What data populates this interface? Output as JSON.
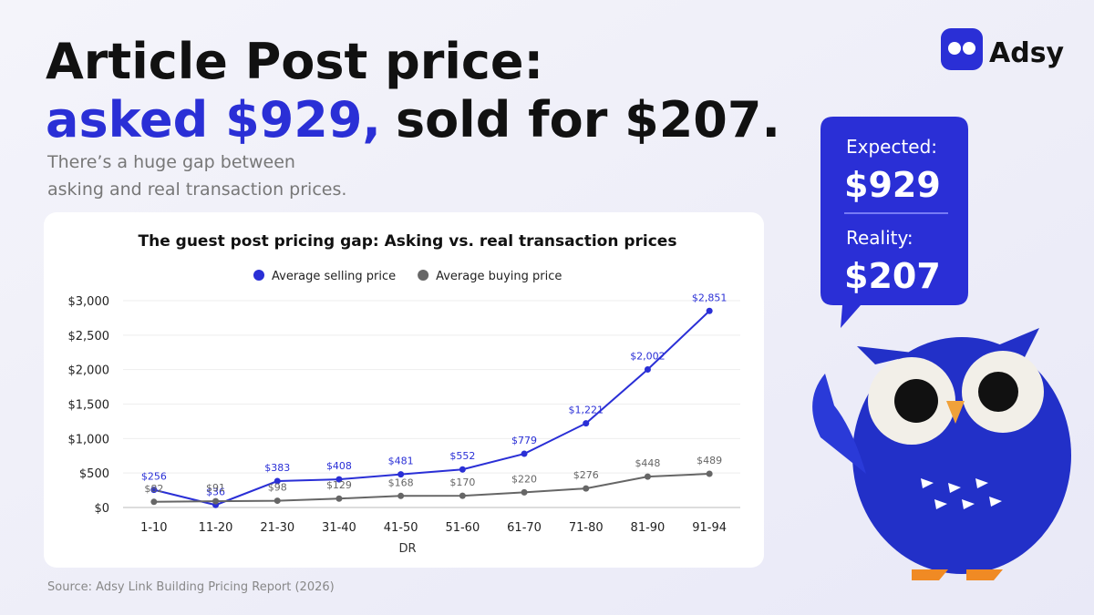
{
  "header": {
    "title_line1": "Article Post price:",
    "title_asked": "asked $929,",
    "title_sold": "sold for $207.",
    "subtitle_line1": "There’s a huge gap between",
    "subtitle_line2": "asking and real transaction prices."
  },
  "logo": {
    "text": "Adsy"
  },
  "bubble": {
    "expected_label": "Expected:",
    "expected_value": "$929",
    "reality_label": "Reality:",
    "reality_value": "$207"
  },
  "source": "Source: Adsy Link Building Pricing Report (2026)",
  "chart_data": {
    "type": "line",
    "title": "The guest post pricing gap: Asking vs. real transaction prices",
    "x_label": "DR",
    "categories": [
      "1-10",
      "11-20",
      "21-30",
      "31-40",
      "41-50",
      "51-60",
      "61-70",
      "71-80",
      "81-90",
      "91-94"
    ],
    "series": [
      {
        "name": "Average selling price",
        "color": "#2a2fd6",
        "values": [
          256,
          36,
          383,
          408,
          481,
          552,
          779,
          1221,
          2002,
          2851
        ],
        "value_labels": [
          "$256",
          "$36",
          "$383",
          "$408",
          "$481",
          "$552",
          "$779",
          "$1,221",
          "$2,002",
          "$2,851"
        ]
      },
      {
        "name": "Average buying price",
        "color": "#666666",
        "values": [
          82,
          91,
          98,
          129,
          168,
          170,
          220,
          276,
          448,
          489
        ],
        "value_labels": [
          "$82",
          "$91",
          "$98",
          "$129",
          "$168",
          "$170",
          "$220",
          "$276",
          "$448",
          "$489"
        ]
      }
    ],
    "ylim": [
      0,
      3000
    ],
    "yticks": [
      {
        "value": 0,
        "label": "$0"
      },
      {
        "value": 500,
        "label": "$500"
      },
      {
        "value": 1000,
        "label": "$1,000"
      },
      {
        "value": 1500,
        "label": "$1,500"
      },
      {
        "value": 2000,
        "label": "$2,000"
      },
      {
        "value": 2500,
        "label": "$2,500"
      },
      {
        "value": 3000,
        "label": "$3,000"
      }
    ],
    "grid": true,
    "legend": "top"
  }
}
